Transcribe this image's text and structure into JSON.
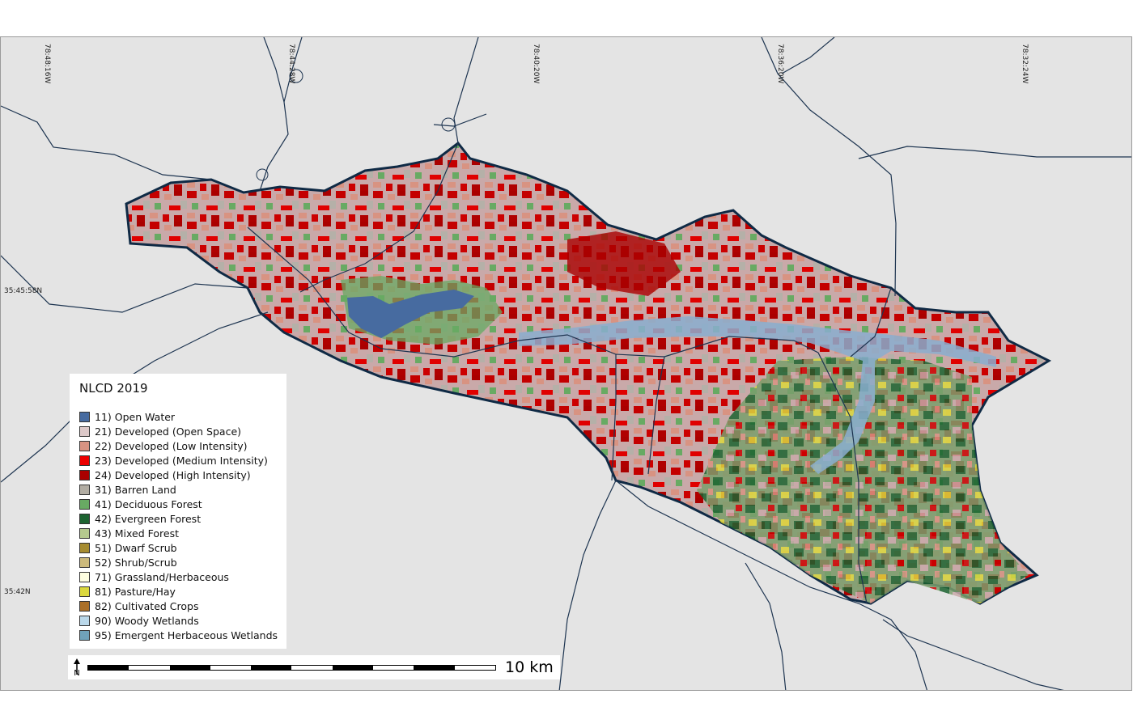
{
  "map": {
    "longitude_labels": [
      "78:48:16W",
      "78:44:28W",
      "78:40:20W",
      "78:36:20W",
      "78:32:24W"
    ],
    "latitude_labels": [
      "35:45:58N",
      "35:42N"
    ]
  },
  "legend": {
    "title": "NLCD 2019",
    "items": [
      {
        "label": "11) Open Water",
        "color": "#476ba0"
      },
      {
        "label": "21) Developed (Open Space)",
        "color": "#ddc9c9"
      },
      {
        "label": "22) Developed (Low Intensity)",
        "color": "#d89382"
      },
      {
        "label": "23) Developed (Medium Intensity)",
        "color": "#ed0000"
      },
      {
        "label": "24) Developed (High Intensity)",
        "color": "#aa0000"
      },
      {
        "label": "31) Barren Land",
        "color": "#b2ada3"
      },
      {
        "label": "41) Deciduous Forest",
        "color": "#68aa63"
      },
      {
        "label": "42) Evergreen Forest",
        "color": "#1c6330"
      },
      {
        "label": "43) Mixed Forest",
        "color": "#b5c98e"
      },
      {
        "label": "51) Dwarf Scrub",
        "color": "#a68c30"
      },
      {
        "label": "52) Shrub/Scrub",
        "color": "#ccba7c"
      },
      {
        "label": "71) Grassland/Herbaceous",
        "color": "#fdfde0"
      },
      {
        "label": "81) Pasture/Hay",
        "color": "#dbd83d"
      },
      {
        "label": "82) Cultivated Crops",
        "color": "#ab7028"
      },
      {
        "label": "90) Woody Wetlands",
        "color": "#bad8ea"
      },
      {
        "label": "95) Emergent Herbaceous Wetlands",
        "color": "#70a3ba"
      }
    ]
  },
  "scale": {
    "label": "10 km",
    "north_label": "N"
  },
  "colors": {
    "background": "#e4e4e4",
    "roads": "#1d3450",
    "boundary": "#0f2a45"
  }
}
